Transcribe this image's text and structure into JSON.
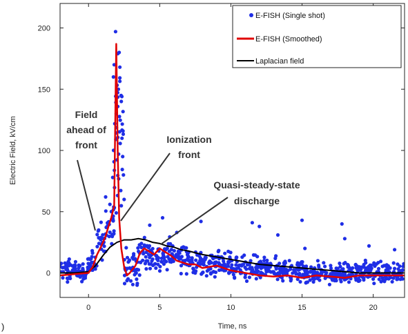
{
  "chart_data": {
    "type": "scatter",
    "xlabel": "Time, ns",
    "ylabel": "Electric Field, kV/cm",
    "xlim": [
      -2,
      22.2
    ],
    "ylim": [
      -20,
      220
    ],
    "xticks": [
      0,
      5,
      10,
      15,
      20
    ],
    "yticks": [
      0,
      50,
      100,
      150,
      200
    ],
    "grid": false,
    "legend_position": "top-right",
    "series": [
      {
        "name": "E-FISH (Single shot)",
        "kind": "scatter",
        "color": "#1f2ee6",
        "points": [
          [
            1.9,
            197
          ],
          [
            2.05,
            179
          ],
          [
            2.15,
            180
          ],
          [
            1.8,
            170
          ],
          [
            2.2,
            168
          ],
          [
            1.75,
            160
          ],
          [
            2.1,
            150
          ],
          [
            2.3,
            140
          ],
          [
            1.95,
            130
          ],
          [
            2.35,
            110
          ],
          [
            2.4,
            95
          ],
          [
            1.7,
            78
          ],
          [
            2.45,
            80
          ],
          [
            2.5,
            60
          ],
          [
            15,
            43
          ],
          [
            11.5,
            41
          ],
          [
            17.8,
            40
          ],
          [
            12,
            38
          ],
          [
            13.3,
            31
          ],
          [
            18,
            28
          ],
          [
            19.7,
            22
          ],
          [
            21.5,
            19
          ],
          [
            15.2,
            20
          ],
          [
            7.9,
            42
          ],
          [
            5.2,
            45
          ],
          [
            4.3,
            39
          ],
          [
            6.2,
            33
          ],
          [
            1.5,
            56
          ],
          [
            1.2,
            62
          ]
        ],
        "band": [
          {
            "x": [
              -2,
              0
            ],
            "mean": 2,
            "spread": 7
          },
          {
            "x": [
              0,
              0.6
            ],
            "mean": 8,
            "spread": 8
          },
          {
            "x": [
              0.6,
              1.2
            ],
            "mean": 25,
            "spread": 12
          },
          {
            "x": [
              1.2,
              1.8
            ],
            "mean": 38,
            "spread": 14
          },
          {
            "x": [
              2.5,
              3.5
            ],
            "mean": 6,
            "spread": 12
          },
          {
            "x": [
              3.5,
              5
            ],
            "mean": 14,
            "spread": 12
          },
          {
            "x": [
              5,
              7
            ],
            "mean": 14,
            "spread": 10
          },
          {
            "x": [
              7,
              10
            ],
            "mean": 8,
            "spread": 9
          },
          {
            "x": [
              10,
              14
            ],
            "mean": 3,
            "spread": 8
          },
          {
            "x": [
              14,
              18
            ],
            "mean": 0,
            "spread": 7
          },
          {
            "x": [
              18,
              22.2
            ],
            "mean": 1,
            "spread": 7
          }
        ]
      },
      {
        "name": "E-FISH (Smoothed)",
        "kind": "line",
        "color": "#e00000",
        "x": [
          -2,
          -1,
          0,
          0.3,
          0.6,
          0.9,
          1.2,
          1.4,
          1.6,
          1.8,
          1.95,
          2.05,
          2.15,
          2.3,
          2.5,
          2.7,
          2.9,
          3.1,
          3.3,
          3.6,
          3.9,
          4.2,
          4.6,
          5.0,
          5.4,
          5.8,
          6.2,
          7.0,
          7.5,
          8.0,
          9.0,
          10.0,
          11.0,
          12.0,
          13.0,
          14.0,
          15.0,
          16.0,
          17.0,
          18.0,
          19.0,
          20.0,
          21.0,
          22.2
        ],
        "y": [
          -2,
          -1,
          0,
          5,
          15,
          22,
          30,
          38,
          45,
          55,
          187,
          100,
          45,
          20,
          5,
          -2,
          0,
          3,
          6,
          16,
          20,
          18,
          15,
          20,
          17,
          14,
          10,
          7,
          7,
          4,
          6,
          2,
          0,
          -2,
          -3,
          -2,
          -4,
          -2,
          -3,
          -4,
          -2,
          -2,
          -2,
          -2
        ]
      },
      {
        "name": "Laplacian field",
        "kind": "line",
        "color": "#000000",
        "x": [
          -2,
          -1,
          0,
          0.5,
          1.0,
          1.5,
          2.0,
          2.5,
          3.0,
          3.5,
          4.0,
          4.5,
          5.0,
          5.5,
          6.0,
          6.5,
          7.0,
          8.0,
          9.0,
          10.0,
          11.0,
          12.0,
          13.0,
          14.0,
          15.0,
          16.0,
          17.0,
          18.0,
          19.0,
          20.0,
          21.0,
          22.2
        ],
        "y": [
          0,
          0,
          1,
          6,
          14,
          21,
          25,
          27,
          27,
          28,
          27,
          25,
          24,
          22,
          21,
          19,
          18,
          15,
          13,
          11,
          9,
          7,
          6,
          5,
          4,
          3,
          2,
          1,
          0,
          0,
          0,
          0
        ]
      }
    ],
    "annotations": [
      {
        "lines": [
          "Field",
          "ahead of",
          "front"
        ]
      },
      {
        "lines": [
          "Ionization",
          "front"
        ]
      },
      {
        "lines": [
          "Quasi-steady-state",
          "discharge"
        ]
      }
    ]
  },
  "fragment_text": ")"
}
